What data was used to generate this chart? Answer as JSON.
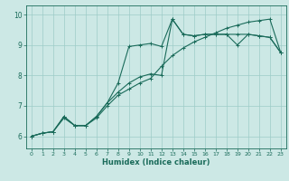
{
  "xlabel": "Humidex (Indice chaleur)",
  "xlim": [
    -0.5,
    23.5
  ],
  "ylim": [
    5.6,
    10.3
  ],
  "xticks": [
    0,
    1,
    2,
    3,
    4,
    5,
    6,
    7,
    8,
    9,
    10,
    11,
    12,
    13,
    14,
    15,
    16,
    17,
    18,
    19,
    20,
    21,
    22,
    23
  ],
  "yticks": [
    6,
    7,
    8,
    9,
    10
  ],
  "bg_color": "#cce8e5",
  "grid_color": "#9eccc8",
  "line_color": "#1a6b5a",
  "line1_x": [
    0,
    1,
    2,
    3,
    4,
    5,
    6,
    7,
    8,
    9,
    10,
    11,
    12,
    13,
    14,
    15,
    16,
    17,
    18,
    19,
    20,
    21,
    22,
    23
  ],
  "line1_y": [
    6.0,
    6.1,
    6.15,
    6.65,
    6.35,
    6.35,
    6.65,
    7.1,
    7.75,
    8.95,
    9.0,
    9.05,
    8.95,
    9.85,
    9.35,
    9.3,
    9.35,
    9.35,
    9.35,
    9.35,
    9.35,
    9.3,
    9.25,
    8.75
  ],
  "line2_x": [
    0,
    1,
    2,
    3,
    4,
    5,
    6,
    7,
    8,
    9,
    10,
    11,
    12,
    13,
    14,
    15,
    16,
    17,
    18,
    19,
    20,
    21,
    22,
    23
  ],
  "line2_y": [
    6.0,
    6.1,
    6.15,
    6.65,
    6.35,
    6.35,
    6.65,
    7.1,
    7.45,
    7.75,
    7.95,
    8.05,
    8.0,
    9.85,
    9.35,
    9.3,
    9.35,
    9.35,
    9.35,
    9.0,
    9.35,
    9.3,
    9.25,
    8.75
  ],
  "line3_x": [
    0,
    1,
    2,
    3,
    4,
    5,
    6,
    7,
    8,
    9,
    10,
    11,
    12,
    13,
    14,
    15,
    16,
    17,
    18,
    19,
    20,
    21,
    22,
    23
  ],
  "line3_y": [
    6.0,
    6.1,
    6.15,
    6.6,
    6.35,
    6.35,
    6.6,
    7.0,
    7.35,
    7.55,
    7.75,
    7.9,
    8.3,
    8.65,
    8.9,
    9.1,
    9.25,
    9.4,
    9.55,
    9.65,
    9.75,
    9.8,
    9.85,
    8.75
  ]
}
